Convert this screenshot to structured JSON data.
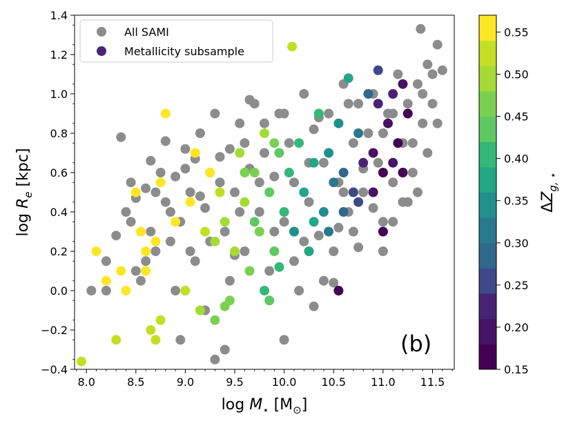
{
  "chart_data": {
    "type": "scatter",
    "panel_label": "(b)",
    "x_axis": {
      "label_parts": {
        "prefix": "log ",
        "symbol": "M",
        "subscript": "⋆",
        "unit": " [M",
        "unit_sub": "⊙",
        "unit_close": "]"
      },
      "range": [
        7.88,
        11.72
      ],
      "ticks": [
        8.0,
        8.5,
        9.0,
        9.5,
        10.0,
        10.5,
        11.0,
        11.5
      ],
      "tick_labels": [
        "8.0",
        "8.5",
        "9.0",
        "9.5",
        "10.0",
        "10.5",
        "11.0",
        "11.5"
      ]
    },
    "y_axis": {
      "label_parts": {
        "prefix": "log ",
        "symbol": "R",
        "subscript": "e",
        "unit": " [kpc]"
      },
      "range": [
        -0.4,
        1.4
      ],
      "ticks": [
        -0.4,
        -0.2,
        0.0,
        0.2,
        0.4,
        0.6,
        0.8,
        1.0,
        1.2,
        1.4
      ],
      "tick_labels": [
        "−0.4",
        "−0.2",
        "0.0",
        "0.2",
        "0.4",
        "0.6",
        "0.8",
        "1.0",
        "1.2",
        "1.4"
      ]
    },
    "legend": {
      "position": "top-left",
      "entries": [
        {
          "label": "All SAMI",
          "color": "#8c8c8c"
        },
        {
          "label": "Metallicity subsample",
          "color": "#482677"
        }
      ]
    },
    "colorbar": {
      "label_parts": {
        "prefix": "Δ",
        "symbol": "Z",
        "subscript": "g, ⋆"
      },
      "range": [
        0.15,
        0.57
      ],
      "ticks": [
        0.15,
        0.2,
        0.25,
        0.3,
        0.35,
        0.4,
        0.45,
        0.5,
        0.55
      ],
      "tick_labels": [
        "0.15",
        "0.20",
        "0.25",
        "0.30",
        "0.35",
        "0.40",
        "0.45",
        "0.50",
        "0.55"
      ],
      "bins": [
        0.15,
        0.18,
        0.21,
        0.24,
        0.27,
        0.3,
        0.33,
        0.36,
        0.39,
        0.42,
        0.45,
        0.48,
        0.51,
        0.54,
        0.57
      ],
      "colors": [
        "#440154",
        "#471365",
        "#482374",
        "#3e4989",
        "#31688e",
        "#2a788e",
        "#21908d",
        "#22a785",
        "#35b779",
        "#5ec962",
        "#7ad151",
        "#a5db36",
        "#c2df23",
        "#fde725"
      ]
    },
    "series": [
      {
        "name": "All SAMI",
        "color": "#8c8c8c",
        "points": [
          [
            8.05,
            0.0
          ],
          [
            8.2,
            0.0
          ],
          [
            8.2,
            0.15
          ],
          [
            8.35,
            0.78
          ],
          [
            8.4,
            0.4
          ],
          [
            8.45,
            0.35
          ],
          [
            8.5,
            0.1
          ],
          [
            8.55,
            0.05
          ],
          [
            8.6,
            0.52
          ],
          [
            8.65,
            0.3
          ],
          [
            8.7,
            0.2
          ],
          [
            8.75,
            0.6
          ],
          [
            8.8,
            0.45
          ],
          [
            8.85,
            0.25
          ],
          [
            8.9,
            0.58
          ],
          [
            8.95,
            0.35
          ],
          [
            9.0,
            0.72
          ],
          [
            9.05,
            0.5
          ],
          [
            9.1,
            0.15
          ],
          [
            9.15,
            0.8
          ],
          [
            9.2,
            0.42
          ],
          [
            9.25,
            0.6
          ],
          [
            9.3,
            0.9
          ],
          [
            9.35,
            0.55
          ],
          [
            9.4,
            0.3
          ],
          [
            9.45,
            0.72
          ],
          [
            9.5,
            0.5
          ],
          [
            9.55,
            0.85
          ],
          [
            9.6,
            0.2
          ],
          [
            9.65,
            0.62
          ],
          [
            9.7,
            0.95
          ],
          [
            9.75,
            0.4
          ],
          [
            9.8,
            0.7
          ],
          [
            9.85,
            0.1
          ],
          [
            9.9,
            0.58
          ],
          [
            9.95,
            0.9
          ],
          [
            10.0,
            0.35
          ],
          [
            10.05,
            0.75
          ],
          [
            10.1,
            0.55
          ],
          [
            10.15,
            0.0
          ],
          [
            10.2,
            1.0
          ],
          [
            10.25,
            0.45
          ],
          [
            10.3,
            0.82
          ],
          [
            10.35,
            0.28
          ],
          [
            10.4,
            0.65
          ],
          [
            10.45,
            0.9
          ],
          [
            10.5,
            0.2
          ],
          [
            10.55,
            0.55
          ],
          [
            10.6,
            1.05
          ],
          [
            10.65,
            0.4
          ],
          [
            10.7,
            0.75
          ],
          [
            10.75,
            0.95
          ],
          [
            10.8,
            0.5
          ],
          [
            10.85,
            0.8
          ],
          [
            10.9,
            1.0
          ],
          [
            10.95,
            0.65
          ],
          [
            11.0,
            0.35
          ],
          [
            11.05,
            0.9
          ],
          [
            11.1,
            0.55
          ],
          [
            11.15,
            1.1
          ],
          [
            11.2,
            0.75
          ],
          [
            11.25,
            0.95
          ],
          [
            11.3,
            0.6
          ],
          [
            11.35,
            1.05
          ],
          [
            11.4,
            0.85
          ],
          [
            11.45,
            1.15
          ],
          [
            11.5,
            0.95
          ],
          [
            11.55,
            1.25
          ],
          [
            11.6,
            1.12
          ],
          [
            11.38,
            1.33
          ],
          [
            9.65,
            0.97
          ],
          [
            8.95,
            -0.25
          ],
          [
            9.3,
            -0.35
          ],
          [
            9.4,
            -0.3
          ],
          [
            10.0,
            -0.25
          ],
          [
            9.2,
            -0.1
          ],
          [
            8.9,
            0.0
          ],
          [
            10.3,
            -0.08
          ],
          [
            10.5,
            0.04
          ],
          [
            9.0,
            0.62
          ],
          [
            8.6,
            0.15
          ],
          [
            9.15,
            0.48
          ],
          [
            9.5,
            0.18
          ],
          [
            10.1,
            0.15
          ],
          [
            10.4,
            0.05
          ],
          [
            10.2,
            0.25
          ],
          [
            10.7,
            0.3
          ],
          [
            11.0,
            0.2
          ],
          [
            11.1,
            0.35
          ],
          [
            11.2,
            0.45
          ],
          [
            11.3,
            0.75
          ],
          [
            11.4,
            1.0
          ],
          [
            10.0,
            0.9
          ],
          [
            9.8,
            0.85
          ],
          [
            8.5,
            0.47
          ],
          [
            8.7,
            0.5
          ],
          [
            8.85,
            0.4
          ],
          [
            9.05,
            0.2
          ],
          [
            9.25,
            0.25
          ],
          [
            9.45,
            0.05
          ],
          [
            10.6,
            0.5
          ],
          [
            10.9,
            0.42
          ],
          [
            11.0,
            0.8
          ],
          [
            10.8,
            0.62
          ],
          [
            10.65,
            0.95
          ],
          [
            11.25,
            0.45
          ],
          [
            11.1,
            0.9
          ],
          [
            9.35,
            0.68
          ],
          [
            9.55,
            0.4
          ],
          [
            9.75,
            0.55
          ],
          [
            9.9,
            0.3
          ],
          [
            10.25,
            0.65
          ],
          [
            8.3,
            0.28
          ],
          [
            8.45,
            0.55
          ],
          [
            8.65,
            0.66
          ],
          [
            8.8,
            0.76
          ],
          [
            9.1,
            0.67
          ],
          [
            9.6,
            0.75
          ],
          [
            10.35,
            0.88
          ],
          [
            10.55,
            0.32
          ],
          [
            10.75,
            0.22
          ],
          [
            11.35,
            0.5
          ],
          [
            11.45,
            0.7
          ],
          [
            11.55,
            0.85
          ],
          [
            11.5,
            1.1
          ]
        ]
      },
      {
        "name": "Metallicity subsample",
        "color": "#482677",
        "points": [
          [
            7.95,
            -0.36,
            0.53
          ],
          [
            8.1,
            0.2,
            0.55
          ],
          [
            8.2,
            0.05,
            0.55
          ],
          [
            8.3,
            -0.25,
            0.52
          ],
          [
            8.35,
            0.1,
            0.55
          ],
          [
            8.4,
            0.0,
            0.55
          ],
          [
            8.5,
            0.5,
            0.56
          ],
          [
            8.55,
            0.3,
            0.55
          ],
          [
            8.6,
            0.2,
            0.55
          ],
          [
            8.7,
            0.25,
            0.56
          ],
          [
            8.75,
            0.55,
            0.55
          ],
          [
            8.8,
            0.9,
            0.56
          ],
          [
            8.65,
            -0.2,
            0.52
          ],
          [
            8.6,
            0.1,
            0.55
          ],
          [
            8.75,
            -0.15,
            0.52
          ],
          [
            8.9,
            0.35,
            0.55
          ],
          [
            9.0,
            0.0,
            0.51
          ],
          [
            9.05,
            0.45,
            0.55
          ],
          [
            9.1,
            0.7,
            0.56
          ],
          [
            9.15,
            -0.1,
            0.5
          ],
          [
            9.2,
            0.3,
            0.52
          ],
          [
            9.25,
            0.6,
            0.55
          ],
          [
            9.3,
            0.25,
            0.5
          ],
          [
            9.35,
            0.5,
            0.53
          ],
          [
            9.4,
            0.35,
            0.5
          ],
          [
            9.45,
            -0.05,
            0.47
          ],
          [
            9.5,
            0.2,
            0.49
          ],
          [
            9.55,
            0.7,
            0.5
          ],
          [
            9.6,
            0.45,
            0.48
          ],
          [
            9.65,
            0.1,
            0.47
          ],
          [
            9.7,
            0.6,
            0.47
          ],
          [
            9.75,
            0.3,
            0.45
          ],
          [
            9.8,
            0.8,
            0.48
          ],
          [
            9.85,
            0.5,
            0.44
          ],
          [
            9.9,
            0.2,
            0.43
          ],
          [
            9.95,
            0.7,
            0.44
          ],
          [
            10.0,
            0.4,
            0.41
          ],
          [
            10.05,
            0.6,
            0.4
          ],
          [
            10.08,
            1.24,
            0.52
          ],
          [
            10.1,
            0.3,
            0.39
          ],
          [
            10.15,
            0.75,
            0.41
          ],
          [
            10.2,
            0.5,
            0.38
          ],
          [
            10.25,
            0.2,
            0.37
          ],
          [
            10.3,
            0.65,
            0.37
          ],
          [
            10.35,
            0.9,
            0.41
          ],
          [
            10.4,
            0.4,
            0.34
          ],
          [
            10.45,
            0.7,
            0.35
          ],
          [
            10.5,
            0.55,
            0.31
          ],
          [
            10.55,
            0.85,
            0.35
          ],
          [
            10.6,
            0.6,
            0.29
          ],
          [
            10.65,
            1.08,
            0.36
          ],
          [
            10.7,
            0.5,
            0.26
          ],
          [
            10.75,
            0.8,
            0.3
          ],
          [
            10.8,
            0.65,
            0.23
          ],
          [
            10.85,
            1.0,
            0.27
          ],
          [
            10.9,
            0.7,
            0.2
          ],
          [
            10.95,
            0.95,
            0.23
          ],
          [
            11.0,
            0.6,
            0.17
          ],
          [
            11.05,
            0.85,
            0.19
          ],
          [
            11.1,
            1.0,
            0.23
          ],
          [
            11.15,
            0.75,
            0.17
          ],
          [
            11.2,
            1.05,
            0.2
          ],
          [
            11.25,
            0.9,
            0.17
          ],
          [
            10.55,
            0.0,
            0.16
          ],
          [
            9.8,
            0.0,
            0.4
          ],
          [
            9.85,
            -0.05,
            0.42
          ],
          [
            9.95,
            0.12,
            0.39
          ],
          [
            10.1,
            0.3,
            0.35
          ],
          [
            10.45,
            0.3,
            0.32
          ],
          [
            8.7,
            -0.25,
            0.52
          ],
          [
            9.3,
            -0.15,
            0.47
          ],
          [
            9.4,
            -0.08,
            0.45
          ],
          [
            9.7,
            0.35,
            0.42
          ],
          [
            9.6,
            0.6,
            0.46
          ],
          [
            9.9,
            0.75,
            0.45
          ],
          [
            10.3,
            0.35,
            0.36
          ],
          [
            10.6,
            0.4,
            0.28
          ],
          [
            10.75,
            0.45,
            0.25
          ],
          [
            10.9,
            0.5,
            0.19
          ],
          [
            11.0,
            0.3,
            0.16
          ],
          [
            11.1,
            0.65,
            0.18
          ],
          [
            11.2,
            0.6,
            0.16
          ],
          [
            10.95,
            1.12,
            0.25
          ]
        ]
      }
    ]
  }
}
